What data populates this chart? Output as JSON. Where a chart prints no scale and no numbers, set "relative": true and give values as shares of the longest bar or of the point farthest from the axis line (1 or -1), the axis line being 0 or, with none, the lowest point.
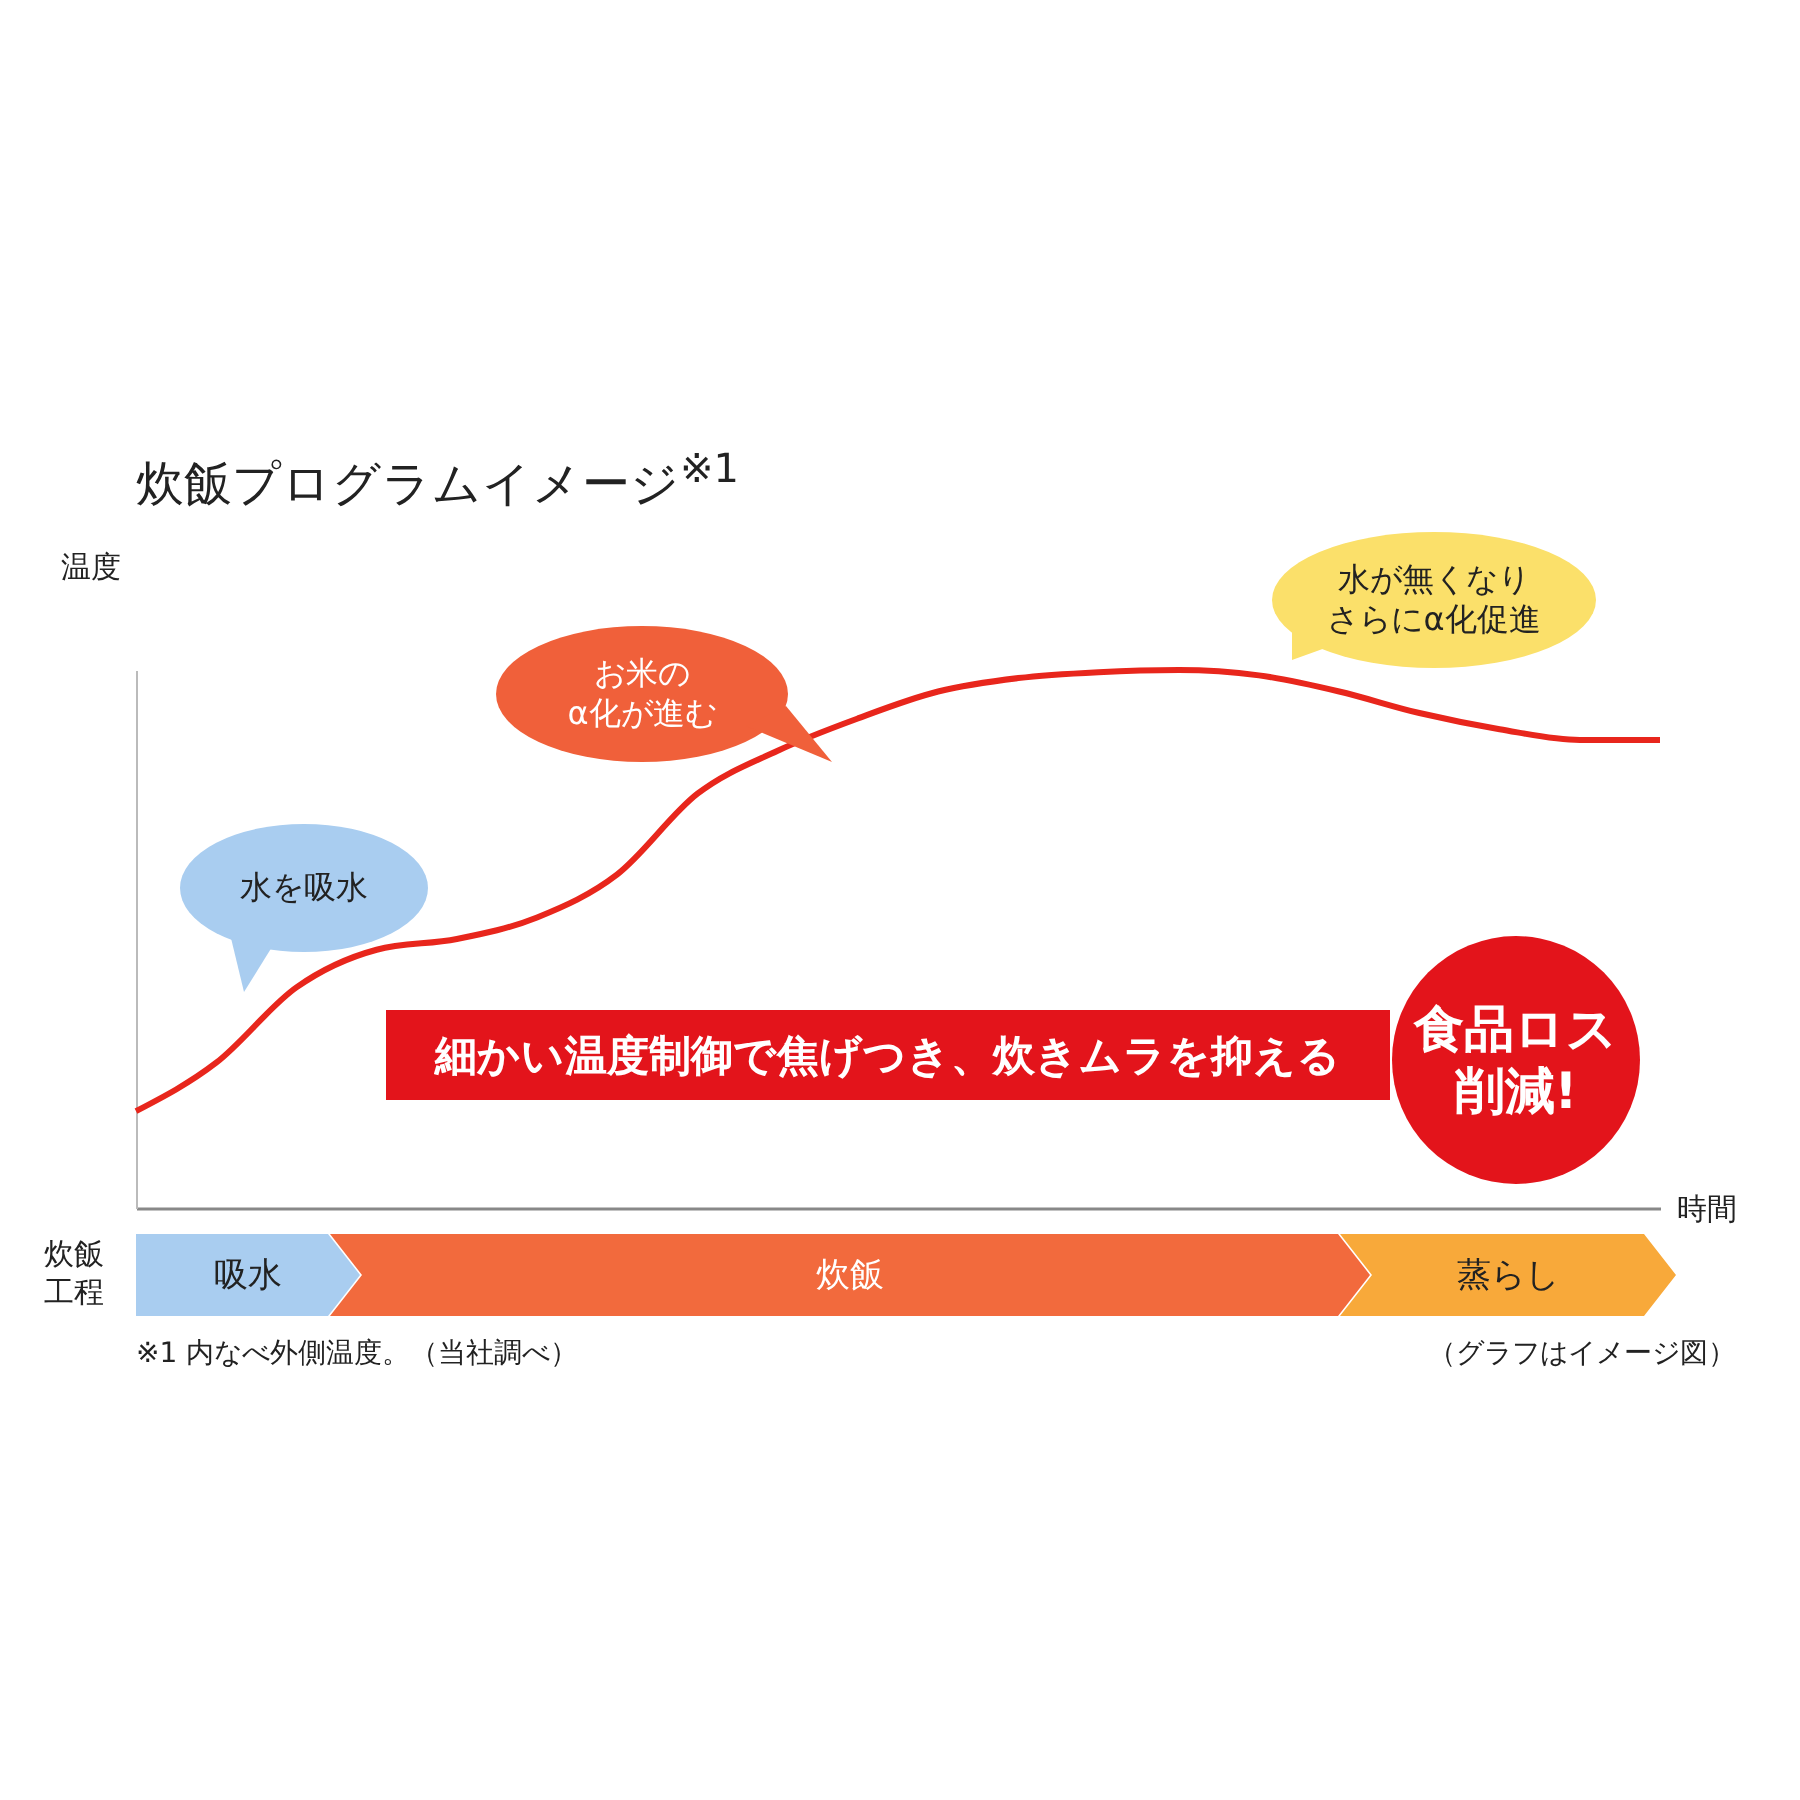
{
  "chart_data": {
    "type": "line",
    "title": "炊飯プログラムイメージ$^{※1}$",
    "xlabel": "時間",
    "ylabel": "温度",
    "relative": true,
    "legend": false,
    "grid": false,
    "marker": "none",
    "line_style": "solid",
    "categories": [
      null,
      null,
      null,
      null,
      null,
      null,
      null,
      null,
      null,
      null,
      null,
      null,
      null,
      null,
      null,
      null,
      null,
      null,
      null,
      null
    ],
    "series": [
      {
        "color": "#e8261c",
        "values": [
          0.18,
          0.27,
          0.41,
          0.48,
          0.5,
          0.54,
          0.62,
          0.77,
          0.85,
          0.91,
          0.96,
          0.985,
          0.996,
          1,
          0.99,
          0.96,
          0.92,
          0.89,
          0.87,
          0.87
        ]
      }
    ],
    "annotations": [
      "水を吸水",
      "お米のα化が進む",
      "水が無くなりさらにα化促進",
      "細かい温度制御で焦げつき、炊きムラを抑える",
      "食品ロス削減!",
      "炊飯工程",
      "吸水",
      "炊飯",
      "蒸らし",
      "※1 内なべ外側温度。（当社調べ）",
      "（グラフはイメージ図）"
    ]
  }
}
